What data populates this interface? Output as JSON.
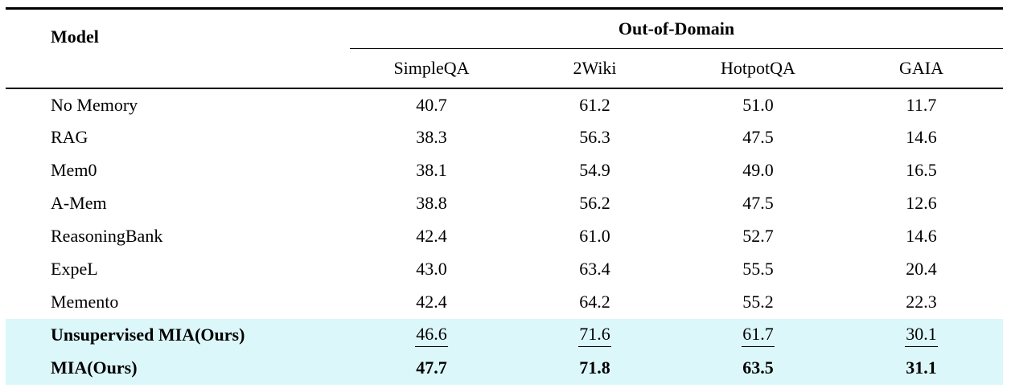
{
  "table": {
    "highlight_color": "#dcf7fa",
    "header": {
      "model_label": "Model",
      "group_label": "Out-of-Domain",
      "columns": [
        "SimpleQA",
        "2Wiki",
        "HotpotQA",
        "GAIA"
      ]
    },
    "rows": [
      {
        "model": "No Memory",
        "values": [
          "40.7",
          "61.2",
          "51.0",
          "11.7"
        ],
        "emphasis": "none"
      },
      {
        "model": "RAG",
        "values": [
          "38.3",
          "56.3",
          "47.5",
          "14.6"
        ],
        "emphasis": "none"
      },
      {
        "model": "Mem0",
        "values": [
          "38.1",
          "54.9",
          "49.0",
          "16.5"
        ],
        "emphasis": "none"
      },
      {
        "model": "A-Mem",
        "values": [
          "38.8",
          "56.2",
          "47.5",
          "12.6"
        ],
        "emphasis": "none"
      },
      {
        "model": "ReasoningBank",
        "values": [
          "42.4",
          "61.0",
          "52.7",
          "14.6"
        ],
        "emphasis": "none"
      },
      {
        "model": "ExpeL",
        "values": [
          "43.0",
          "63.4",
          "55.5",
          "20.4"
        ],
        "emphasis": "none"
      },
      {
        "model": "Memento",
        "values": [
          "42.4",
          "64.2",
          "55.2",
          "22.3"
        ],
        "emphasis": "none"
      },
      {
        "model": "Unsupervised MIA(Ours)",
        "values": [
          "46.6",
          "71.6",
          "61.7",
          "30.1"
        ],
        "emphasis": "underline",
        "highlighted": true
      },
      {
        "model": "MIA(Ours)",
        "values": [
          "47.7",
          "71.8",
          "63.5",
          "31.1"
        ],
        "emphasis": "bold",
        "highlighted": true
      }
    ]
  }
}
